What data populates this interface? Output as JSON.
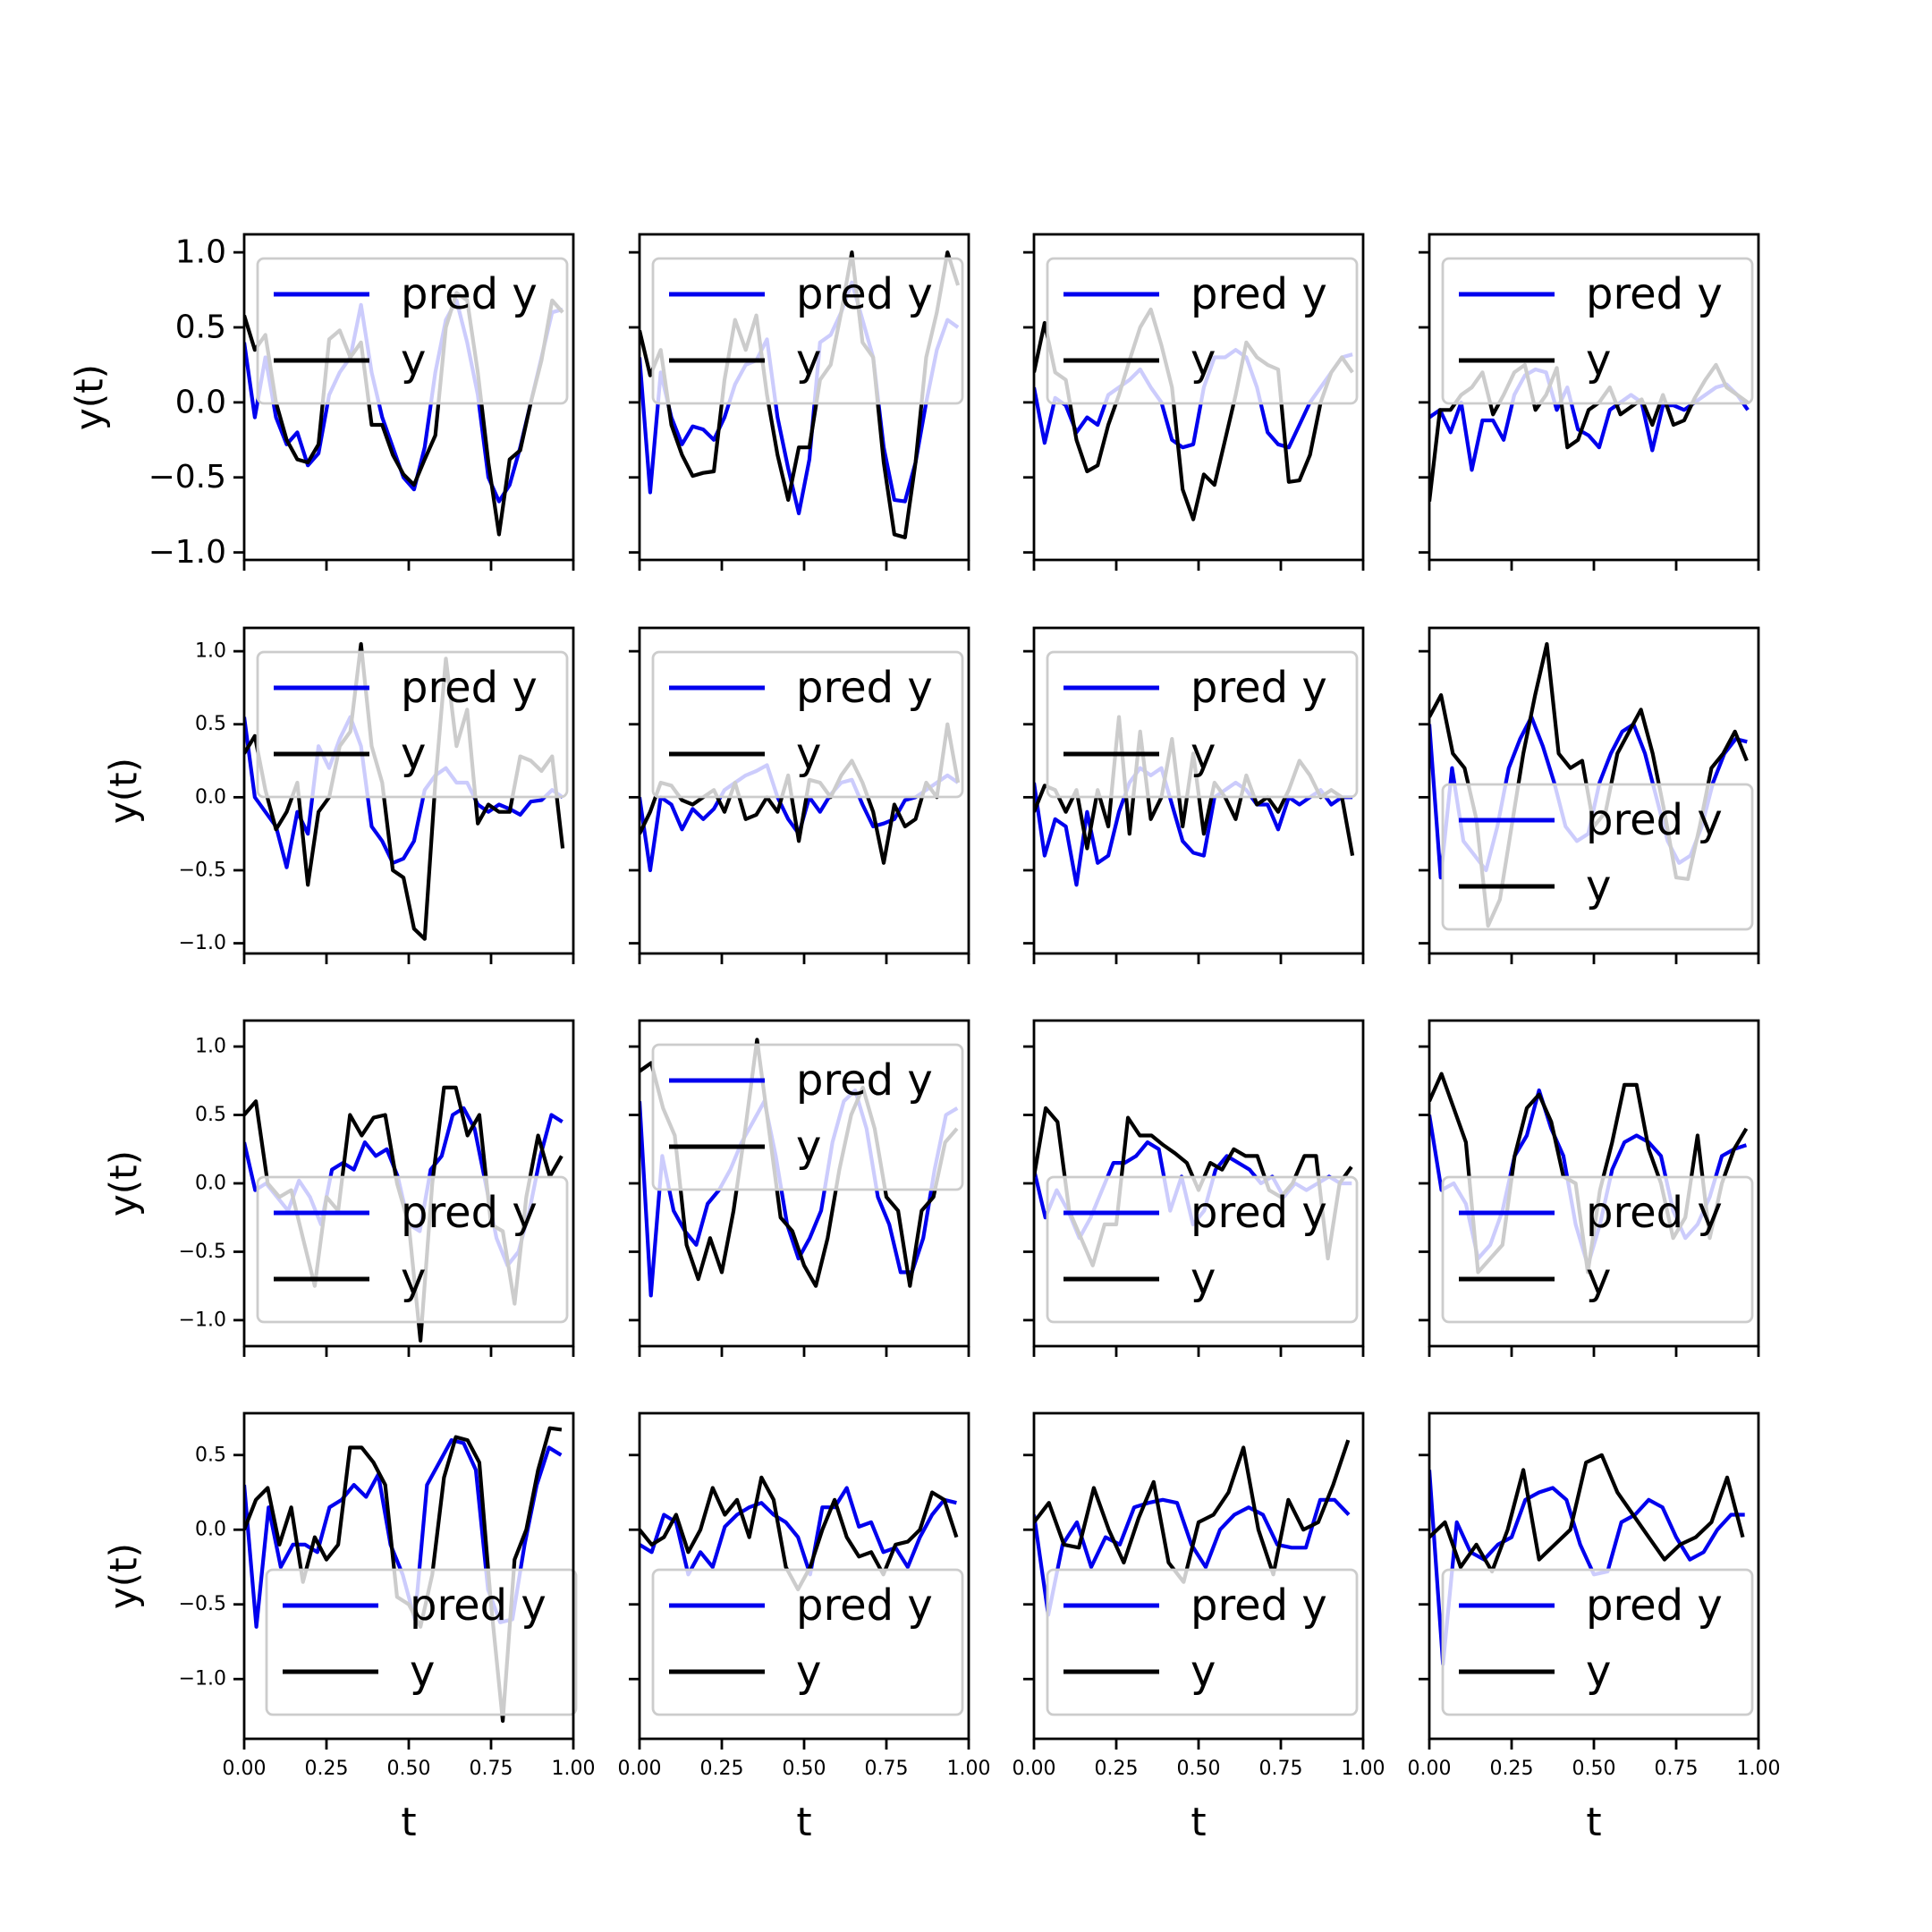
{
  "chart_data": {
    "type": "line",
    "layout": "4x4 grid",
    "xlabel": "t",
    "ylabel": "y(t)",
    "xlim": [
      0,
      1
    ],
    "xticks": [
      "0.00",
      "0.25",
      "0.50",
      "0.75",
      "1.00"
    ],
    "row_ylims": [
      [
        -1.05,
        1.12
      ],
      [
        -1.07,
        1.16
      ],
      [
        -1.19,
        1.19
      ],
      [
        -1.4,
        0.78
      ]
    ],
    "row_yticks": [
      [
        "−1.0",
        "−0.5",
        "0.0",
        "0.5",
        "1.0"
      ],
      [
        "−1.0",
        "−0.5",
        "0.0",
        "0.5",
        "1.0"
      ],
      [
        "−1.0",
        "−0.5",
        "0.0",
        "0.5",
        "1.0"
      ],
      [
        "−1.0",
        "−0.5",
        "0.0",
        "0.5"
      ]
    ],
    "row_ytick_values": [
      [
        -1,
        -0.5,
        0,
        0.5,
        1
      ],
      [
        -1,
        -0.5,
        0,
        0.5,
        1
      ],
      [
        -1,
        -0.5,
        0,
        0.5,
        1
      ],
      [
        -1,
        -0.5,
        0,
        0.5
      ]
    ],
    "grid": false,
    "legend_labels": [
      "pred y",
      "y"
    ],
    "colors": {
      "pred": "#0000ee",
      "true": "#000000",
      "legend_frame": "#cccccc",
      "axes": "#000000"
    },
    "panels": [
      {
        "legend": "top-right",
        "pred": [
          0.4,
          -0.1,
          0.3,
          -0.1,
          -0.28,
          -0.2,
          -0.42,
          -0.34,
          0.05,
          0.2,
          0.3,
          0.65,
          0.2,
          -0.1,
          -0.3,
          -0.5,
          -0.58,
          -0.3,
          0.2,
          0.55,
          0.68,
          0.4,
          0.05,
          -0.5,
          -0.66,
          -0.55,
          -0.3,
          0.0,
          0.3,
          0.6,
          0.62
        ],
        "true": [
          0.58,
          0.35,
          0.45,
          0.0,
          -0.25,
          -0.38,
          -0.4,
          -0.28,
          0.42,
          0.48,
          0.3,
          0.4,
          -0.15,
          -0.15,
          -0.35,
          -0.48,
          -0.55,
          -0.38,
          -0.22,
          0.5,
          0.73,
          0.68,
          0.2,
          -0.4,
          -0.88,
          -0.38,
          -0.32,
          0.0,
          0.28,
          0.68,
          0.6
        ]
      },
      {
        "legend": "top-right",
        "pred": [
          0.3,
          -0.6,
          0.2,
          -0.1,
          -0.28,
          -0.16,
          -0.18,
          -0.25,
          -0.1,
          0.12,
          0.25,
          0.28,
          0.42,
          -0.1,
          -0.44,
          -0.74,
          -0.38,
          0.4,
          0.45,
          0.6,
          0.8,
          0.55,
          0.3,
          -0.3,
          -0.65,
          -0.66,
          -0.4,
          0.0,
          0.35,
          0.55,
          0.5
        ],
        "true": [
          0.48,
          0.18,
          0.35,
          -0.15,
          -0.35,
          -0.49,
          -0.47,
          -0.46,
          0.15,
          0.55,
          0.35,
          0.58,
          0.05,
          -0.35,
          -0.65,
          -0.3,
          -0.3,
          0.15,
          0.25,
          0.6,
          1.0,
          0.4,
          0.3,
          -0.4,
          -0.88,
          -0.9,
          -0.4,
          0.3,
          0.6,
          1.0,
          0.78
        ]
      },
      {
        "legend": "top-right",
        "pred": [
          0.1,
          -0.27,
          0.03,
          -0.02,
          -0.2,
          -0.1,
          -0.15,
          0.05,
          0.1,
          0.15,
          0.22,
          0.1,
          0.0,
          -0.25,
          -0.3,
          -0.28,
          0.1,
          0.3,
          0.3,
          0.35,
          0.3,
          0.1,
          -0.2,
          -0.28,
          -0.3,
          -0.15,
          0.0,
          0.1,
          0.2,
          0.3,
          0.32
        ],
        "true": [
          0.2,
          0.53,
          0.2,
          0.15,
          -0.25,
          -0.46,
          -0.42,
          -0.15,
          0.05,
          0.28,
          0.5,
          0.62,
          0.38,
          0.1,
          -0.58,
          -0.78,
          -0.48,
          -0.55,
          -0.25,
          0.05,
          0.4,
          0.3,
          0.25,
          0.22,
          -0.53,
          -0.52,
          -0.35,
          0.0,
          0.2,
          0.3,
          0.2
        ]
      },
      {
        "legend": "top-right",
        "pred": [
          -0.1,
          -0.05,
          -0.2,
          0.0,
          -0.45,
          -0.12,
          -0.12,
          -0.25,
          0.05,
          0.18,
          0.22,
          0.2,
          -0.05,
          0.1,
          -0.18,
          -0.22,
          -0.3,
          -0.05,
          0.0,
          0.05,
          0.0,
          -0.32,
          -0.02,
          -0.02,
          -0.05,
          0.0,
          0.05,
          0.1,
          0.12,
          0.05,
          -0.05
        ],
        "true": [
          -0.66,
          -0.05,
          -0.05,
          0.05,
          0.1,
          0.2,
          -0.08,
          0.05,
          0.2,
          0.25,
          -0.05,
          0.05,
          0.23,
          -0.3,
          -0.25,
          -0.05,
          0.0,
          0.1,
          -0.08,
          -0.03,
          0.02,
          -0.15,
          0.05,
          -0.15,
          -0.12,
          0.03,
          0.15,
          0.25,
          0.1,
          0.05,
          0.0
        ]
      },
      {
        "legend": "top-right",
        "pred": [
          0.55,
          0.0,
          -0.1,
          -0.2,
          -0.48,
          -0.1,
          -0.25,
          0.35,
          0.2,
          0.4,
          0.55,
          0.35,
          -0.2,
          -0.3,
          -0.45,
          -0.42,
          -0.3,
          0.05,
          0.15,
          0.2,
          0.1,
          0.1,
          -0.05,
          -0.1,
          -0.05,
          -0.08,
          -0.12,
          -0.03,
          -0.02,
          0.05,
          0.0
        ],
        "true": [
          0.3,
          0.42,
          0.05,
          -0.22,
          -0.1,
          0.1,
          -0.6,
          -0.1,
          0.0,
          0.35,
          0.45,
          1.05,
          0.35,
          0.1,
          -0.5,
          -0.55,
          -0.9,
          -0.97,
          0.1,
          0.95,
          0.35,
          0.6,
          -0.18,
          -0.05,
          -0.1,
          -0.1,
          0.28,
          0.25,
          0.18,
          0.28,
          -0.35
        ]
      },
      {
        "legend": "top-right",
        "pred": [
          0.0,
          -0.5,
          0.0,
          -0.05,
          -0.22,
          -0.08,
          -0.15,
          -0.08,
          0.05,
          0.1,
          0.15,
          0.18,
          0.22,
          0.0,
          -0.15,
          -0.25,
          0.0,
          -0.1,
          0.02,
          0.1,
          0.12,
          -0.05,
          -0.2,
          -0.18,
          -0.15,
          -0.02,
          0.0,
          0.05,
          0.1,
          0.15,
          0.1
        ],
        "true": [
          -0.25,
          -0.1,
          0.1,
          0.08,
          -0.02,
          -0.05,
          0.0,
          0.05,
          -0.1,
          0.1,
          -0.15,
          -0.12,
          0.0,
          -0.1,
          0.15,
          -0.3,
          0.12,
          0.1,
          0.0,
          0.15,
          0.25,
          0.1,
          -0.1,
          -0.45,
          -0.05,
          -0.2,
          -0.15,
          0.1,
          0.0,
          0.5,
          0.1
        ]
      },
      {
        "legend": "top-right",
        "pred": [
          0.1,
          -0.4,
          -0.15,
          -0.2,
          -0.6,
          -0.1,
          -0.45,
          -0.4,
          -0.1,
          0.1,
          0.2,
          0.15,
          0.2,
          -0.05,
          -0.3,
          -0.38,
          -0.4,
          0.0,
          0.05,
          0.1,
          0.05,
          -0.05,
          -0.05,
          -0.22,
          0.0,
          -0.05,
          0.0,
          0.05,
          -0.05,
          0.0,
          0.0
        ],
        "true": [
          -0.1,
          0.08,
          0.05,
          -0.1,
          0.05,
          -0.35,
          0.05,
          -0.2,
          0.55,
          -0.25,
          0.45,
          -0.15,
          0.0,
          0.4,
          -0.2,
          0.3,
          -0.25,
          0.1,
          0.0,
          -0.15,
          0.15,
          -0.05,
          0.0,
          -0.1,
          0.05,
          0.25,
          0.15,
          0.0,
          0.05,
          0.0,
          -0.4
        ]
      },
      {
        "legend": "lower-right",
        "pred": [
          0.5,
          -0.55,
          0.2,
          -0.3,
          -0.4,
          -0.5,
          -0.2,
          0.2,
          0.4,
          0.55,
          0.35,
          0.1,
          -0.2,
          -0.3,
          -0.25,
          0.1,
          0.3,
          0.45,
          0.5,
          0.3,
          0.0,
          -0.3,
          -0.45,
          -0.4,
          -0.2,
          0.1,
          0.3,
          0.4,
          0.38
        ],
        "true": [
          0.55,
          0.7,
          0.3,
          0.2,
          -0.15,
          -0.88,
          -0.7,
          -0.2,
          0.3,
          0.7,
          1.05,
          0.3,
          0.2,
          0.25,
          -0.2,
          -0.1,
          0.3,
          0.45,
          0.6,
          0.3,
          -0.1,
          -0.55,
          -0.56,
          -0.2,
          0.2,
          0.3,
          0.45,
          0.25
        ]
      },
      {
        "legend": "lower-right",
        "pred": [
          0.3,
          -0.05,
          0.0,
          -0.1,
          -0.2,
          0.02,
          -0.1,
          -0.3,
          0.1,
          0.15,
          0.1,
          0.3,
          0.2,
          0.25,
          0.05,
          -0.3,
          -0.35,
          0.1,
          0.2,
          0.5,
          0.55,
          0.4,
          0.0,
          -0.4,
          -0.6,
          -0.5,
          -0.2,
          0.2,
          0.5,
          0.45
        ],
        "true": [
          0.5,
          0.6,
          0.0,
          -0.1,
          -0.05,
          -0.4,
          -0.75,
          -0.1,
          -0.2,
          0.5,
          0.35,
          0.48,
          0.5,
          0.0,
          -0.3,
          -1.15,
          0.0,
          0.7,
          0.7,
          0.35,
          0.5,
          -0.3,
          -0.35,
          -0.88,
          -0.1,
          0.35,
          0.05,
          0.2
        ]
      },
      {
        "legend": "top-right",
        "pred": [
          0.6,
          -0.82,
          0.2,
          -0.2,
          -0.35,
          -0.45,
          -0.15,
          -0.05,
          0.1,
          0.3,
          0.45,
          0.6,
          0.2,
          -0.3,
          -0.55,
          -0.4,
          -0.2,
          0.3,
          0.6,
          0.68,
          0.4,
          -0.1,
          -0.3,
          -0.65,
          -0.65,
          -0.4,
          0.1,
          0.5,
          0.55
        ],
        "true": [
          0.82,
          0.88,
          0.55,
          0.35,
          -0.45,
          -0.7,
          -0.4,
          -0.65,
          -0.2,
          0.4,
          1.05,
          0.4,
          -0.25,
          -0.35,
          -0.6,
          -0.75,
          -0.4,
          0.1,
          0.5,
          0.7,
          0.4,
          -0.1,
          -0.2,
          -0.75,
          -0.2,
          -0.1,
          0.3,
          0.4
        ]
      },
      {
        "legend": "lower-right",
        "pred": [
          0.1,
          -0.25,
          -0.05,
          -0.2,
          -0.4,
          -0.25,
          -0.05,
          0.15,
          0.15,
          0.2,
          0.3,
          0.25,
          -0.2,
          0.05,
          -0.3,
          -0.2,
          0.1,
          0.2,
          0.15,
          0.1,
          0.0,
          0.05,
          -0.1,
          0.0,
          -0.05,
          0.0,
          0.05,
          0.0,
          0.0
        ],
        "true": [
          0.05,
          0.55,
          0.45,
          -0.2,
          -0.4,
          -0.6,
          -0.3,
          -0.3,
          0.48,
          0.35,
          0.35,
          0.28,
          0.22,
          0.15,
          -0.05,
          0.15,
          0.1,
          0.25,
          0.2,
          0.2,
          -0.05,
          -0.1,
          0.0,
          0.2,
          0.2,
          -0.55,
          0.0,
          0.12
        ]
      },
      {
        "legend": "lower-right",
        "pred": [
          0.5,
          -0.05,
          0.0,
          -0.15,
          -0.55,
          -0.45,
          -0.2,
          0.2,
          0.35,
          0.68,
          0.4,
          0.2,
          -0.3,
          -0.6,
          -0.3,
          0.1,
          0.3,
          0.35,
          0.3,
          0.2,
          -0.2,
          -0.4,
          -0.3,
          -0.1,
          0.2,
          0.25,
          0.28
        ],
        "true": [
          0.6,
          0.8,
          0.55,
          0.3,
          -0.65,
          -0.55,
          -0.45,
          0.2,
          0.55,
          0.65,
          0.45,
          0.05,
          0.0,
          -0.65,
          -0.05,
          0.3,
          0.72,
          0.72,
          0.25,
          0.0,
          -0.4,
          -0.25,
          0.35,
          -0.4,
          0.0,
          0.25,
          0.4
        ]
      },
      {
        "legend": "lower-left",
        "pred": [
          0.3,
          -0.65,
          0.15,
          -0.25,
          -0.1,
          -0.1,
          -0.15,
          0.15,
          0.2,
          0.3,
          0.22,
          0.37,
          -0.1,
          -0.3,
          -0.6,
          0.3,
          0.45,
          0.6,
          0.58,
          0.4,
          -0.4,
          -0.62,
          -0.6,
          -0.1,
          0.3,
          0.55,
          0.5
        ],
        "true": [
          0.0,
          0.2,
          0.28,
          -0.1,
          0.15,
          -0.35,
          -0.05,
          -0.2,
          -0.1,
          0.55,
          0.55,
          0.45,
          0.3,
          -0.45,
          -0.5,
          -0.65,
          -0.3,
          0.35,
          0.62,
          0.6,
          0.45,
          -0.5,
          -1.28,
          -0.2,
          0.0,
          0.4,
          0.68,
          0.67
        ]
      },
      {
        "legend": "lower-right",
        "pred": [
          -0.1,
          -0.15,
          0.1,
          0.05,
          -0.3,
          -0.15,
          -0.25,
          0.02,
          0.1,
          0.15,
          0.18,
          0.1,
          0.05,
          -0.05,
          -0.3,
          0.15,
          0.15,
          0.28,
          0.02,
          0.05,
          -0.15,
          -0.12,
          -0.25,
          -0.05,
          0.1,
          0.2,
          0.18
        ],
        "true": [
          0.0,
          -0.1,
          -0.05,
          0.1,
          -0.15,
          0.0,
          0.28,
          0.1,
          0.2,
          -0.05,
          0.35,
          0.2,
          -0.25,
          -0.4,
          -0.25,
          0.0,
          0.2,
          -0.05,
          -0.18,
          -0.15,
          -0.3,
          -0.1,
          -0.08,
          0.0,
          0.25,
          0.2,
          -0.05
        ]
      },
      {
        "legend": "lower-right",
        "pred": [
          0.1,
          -0.57,
          -0.1,
          0.05,
          -0.25,
          -0.05,
          -0.1,
          0.15,
          0.18,
          0.2,
          0.18,
          -0.1,
          -0.25,
          0.0,
          0.1,
          0.15,
          0.1,
          -0.1,
          -0.12,
          -0.12,
          0.2,
          0.2,
          0.1
        ],
        "true": [
          0.05,
          0.18,
          -0.1,
          -0.12,
          0.28,
          0.0,
          -0.22,
          0.08,
          0.32,
          -0.22,
          -0.35,
          0.05,
          0.1,
          0.25,
          0.55,
          0.0,
          -0.3,
          0.2,
          0.0,
          0.05,
          0.3,
          0.6
        ]
      },
      {
        "legend": "lower-right",
        "pred": [
          0.4,
          -0.9,
          0.05,
          -0.15,
          -0.2,
          -0.1,
          -0.05,
          0.2,
          0.25,
          0.28,
          0.2,
          -0.1,
          -0.3,
          -0.28,
          0.05,
          0.1,
          0.2,
          0.15,
          -0.05,
          -0.2,
          -0.15,
          0.0,
          0.1,
          0.1
        ],
        "true": [
          -0.05,
          0.05,
          -0.25,
          -0.1,
          -0.28,
          0.0,
          0.4,
          -0.2,
          -0.1,
          0.0,
          0.45,
          0.5,
          0.25,
          0.1,
          -0.05,
          -0.2,
          -0.1,
          -0.05,
          0.05,
          0.35,
          -0.05
        ]
      }
    ]
  }
}
